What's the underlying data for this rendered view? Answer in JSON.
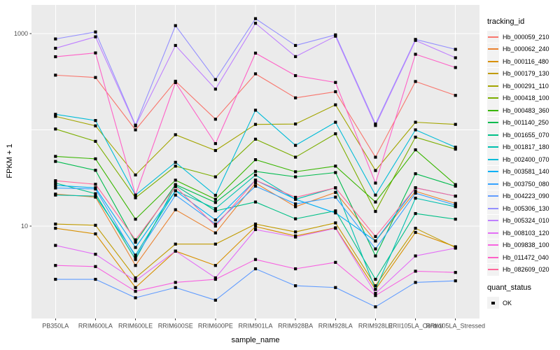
{
  "legend": {
    "tracking_title": "tracking_id",
    "quant_title": "quant_status",
    "quant_item": "OK"
  },
  "style": {
    "panel_bg": "#EBEBEB",
    "grid_color": "#FFFFFF",
    "tick_color": "#333333",
    "tick_label_color": "#4D4D4D",
    "point_color": "#000000",
    "legend_key_bg": "#F2F2F2"
  },
  "chart_data": {
    "type": "line",
    "title": "",
    "xlabel": "sample_name",
    "ylabel": "FPKM + 1",
    "yscale": "log10",
    "ylim": [
      1.1,
      2000
    ],
    "grid": "white major gridlines at 10, 100, 1000 on grey panel; vertical gridline per sample",
    "legend_position": "right",
    "point_marker": {
      "shape": "square",
      "color": "#000000",
      "status_label": "OK"
    },
    "y_ticks": [
      {
        "label": "1000",
        "value": 1000
      },
      {
        "label": "10",
        "value": 10
      }
    ],
    "categories": [
      "PB350LA",
      "RRIM600LA",
      "RRIM600LE",
      "RRIM600SE",
      "RRIM600PE",
      "RRIM901LA",
      "RRIM928BA",
      "RRIM928LA",
      "RRIM928LE",
      "RRII105LA_Control",
      "RRII105LA_Stressed"
    ],
    "series": [
      {
        "name": "Hb_000059_210",
        "color": "#F8766D",
        "values": [
          370,
          350,
          100,
          320,
          129,
          382,
          215,
          249,
          52,
          318,
          228
        ]
      },
      {
        "name": "Hb_000062_240",
        "color": "#EA8331",
        "values": [
          21.5,
          20,
          3.9,
          14.8,
          8.5,
          28,
          15.9,
          22.4,
          7,
          23,
          17.2
        ]
      },
      {
        "name": "Hb_000116_480",
        "color": "#D89000",
        "values": [
          9.5,
          8.3,
          2.3,
          5.5,
          3.9,
          9.9,
          7.9,
          9.6,
          2.2,
          8.6,
          6.1
        ]
      },
      {
        "name": "Hb_000179_130",
        "color": "#C09B00",
        "values": [
          10.5,
          10.2,
          2.9,
          6.5,
          6.5,
          10.5,
          8.7,
          10.8,
          2.4,
          9.5,
          6.0
        ]
      },
      {
        "name": "Hb_000291_110",
        "color": "#A3A500",
        "values": [
          138,
          110,
          34,
          89,
          61,
          114,
          115,
          182,
          37.8,
          120,
          114
        ]
      },
      {
        "name": "Hb_000418_100",
        "color": "#7CAE00",
        "values": [
          102,
          76,
          19.7,
          42,
          32.5,
          80,
          52,
          91,
          14.2,
          84,
          63
        ]
      },
      {
        "name": "Hb_000483_360",
        "color": "#39B600",
        "values": [
          53,
          50,
          11.8,
          30,
          19,
          49,
          36.7,
          42,
          17.8,
          62,
          27
        ]
      },
      {
        "name": "Hb_001140_250",
        "color": "#00BB4E",
        "values": [
          47,
          38,
          6.8,
          27,
          17.6,
          37,
          32.5,
          36,
          4.9,
          35,
          26
        ]
      },
      {
        "name": "Hb_001655_070",
        "color": "#00C087",
        "values": [
          28,
          21.7,
          4.5,
          26.4,
          14.4,
          17.8,
          11.9,
          14.4,
          2.8,
          13.5,
          11.8
        ]
      },
      {
        "name": "Hb_001817_180",
        "color": "#00C0AF",
        "values": [
          21,
          20.5,
          5,
          23.3,
          15.2,
          33.9,
          19,
          25,
          2.2,
          19.5,
          15.9
        ]
      },
      {
        "name": "Hb_002400_070",
        "color": "#00BCD8",
        "values": [
          145,
          125,
          21,
          46,
          20.9,
          160,
          69,
          120,
          21,
          100,
          66
        ]
      },
      {
        "name": "Hb_003581_140",
        "color": "#00B0F6",
        "values": [
          26.5,
          25,
          6,
          23.3,
          11.6,
          30,
          19,
          13.7,
          7,
          25,
          20.5
        ]
      },
      {
        "name": "Hb_003750_080",
        "color": "#35A2FF",
        "values": [
          24.9,
          24.3,
          4.8,
          21,
          10.5,
          26,
          17,
          20,
          5.8,
          22,
          16.5
        ]
      },
      {
        "name": "Hb_004223_090",
        "color": "#619CFF",
        "values": [
          2.8,
          2.8,
          1.8,
          2.3,
          1.7,
          3.6,
          2.4,
          2.3,
          1.45,
          2.6,
          2.7
        ]
      },
      {
        "name": "Hb_005306_130",
        "color": "#9590FF",
        "values": [
          880,
          1040,
          112,
          1210,
          333,
          1430,
          753,
          970,
          115,
          870,
          686
        ]
      },
      {
        "name": "Hb_005324_010",
        "color": "#BF80FF",
        "values": [
          704,
          926,
          110,
          753,
          265,
          1280,
          577,
          940,
          111,
          850,
          561
        ]
      },
      {
        "name": "Hb_008103_120",
        "color": "#E36EF6",
        "values": [
          6.3,
          5.1,
          2.7,
          5.5,
          2.9,
          9.2,
          7.7,
          9.5,
          2.0,
          4.9,
          5.9
        ]
      },
      {
        "name": "Hb_009838_100",
        "color": "#F763E0",
        "values": [
          3.9,
          3.8,
          2.1,
          2.6,
          2.8,
          4.5,
          3.6,
          4.2,
          1.9,
          3.4,
          3.3
        ]
      },
      {
        "name": "Hb_011472_040",
        "color": "#FF61C7",
        "values": [
          575,
          630,
          21,
          310,
          72,
          627,
          366,
          311,
          28,
          610,
          444
        ]
      },
      {
        "name": "Hb_082609_020",
        "color": "#FF689C",
        "values": [
          29.6,
          27.2,
          7.2,
          25.7,
          10,
          30,
          19.9,
          25,
          7.8,
          25,
          20.5
        ]
      }
    ]
  }
}
